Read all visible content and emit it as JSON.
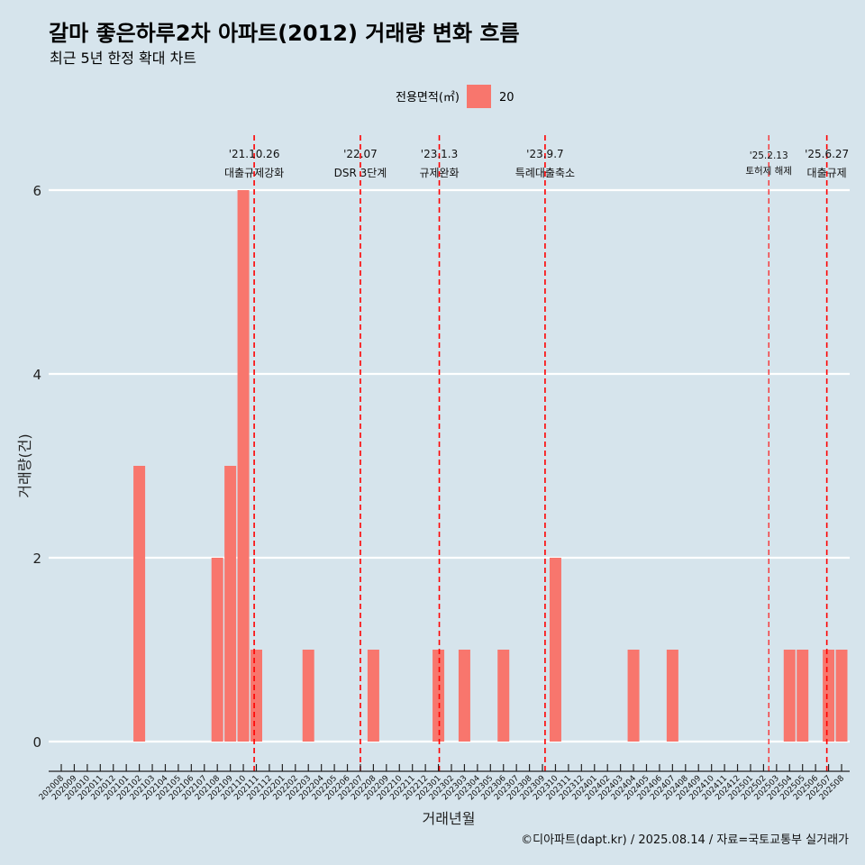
{
  "title": "갈마 좋은하루2차 아파트(2012) 거래량 변화 흐름",
  "subtitle": "최근 5년 한정 확대 차트",
  "caption": "©디아파트(dapt.kr) / 2025.08.14 / 자료=국토교통부 실거래가",
  "legend": {
    "title": "전용면적(㎡)",
    "entries": [
      "20"
    ]
  },
  "colors": {
    "bar": "#f8766d",
    "event_line": "#ff0000",
    "grid": "#ffffff",
    "background": "#d6e4ec"
  },
  "chart_data": {
    "type": "bar",
    "xlabel": "거래년월",
    "ylabel": "거래량(건)",
    "ylim": [
      0,
      6
    ],
    "yticks": [
      0,
      2,
      4,
      6
    ],
    "grid": "horizontal",
    "legend_position": "top",
    "categories": [
      "202008",
      "202009",
      "202010",
      "202011",
      "202012",
      "202101",
      "202102",
      "202103",
      "202104",
      "202105",
      "202106",
      "202107",
      "202108",
      "202109",
      "202110",
      "202111",
      "202112",
      "202201",
      "202202",
      "202203",
      "202204",
      "202205",
      "202206",
      "202207",
      "202208",
      "202209",
      "202210",
      "202211",
      "202212",
      "202301",
      "202302",
      "202303",
      "202304",
      "202305",
      "202306",
      "202307",
      "202308",
      "202309",
      "202310",
      "202311",
      "202312",
      "202401",
      "202402",
      "202403",
      "202404",
      "202405",
      "202406",
      "202407",
      "202408",
      "202409",
      "202410",
      "202411",
      "202412",
      "202501",
      "202502",
      "202503",
      "202504",
      "202505",
      "202506",
      "202507",
      "202508"
    ],
    "series": [
      {
        "name": "20",
        "values": [
          0,
          0,
          0,
          0,
          0,
          0,
          3,
          0,
          0,
          0,
          0,
          0,
          2,
          3,
          6,
          1,
          0,
          0,
          0,
          1,
          0,
          0,
          0,
          0,
          1,
          0,
          0,
          0,
          0,
          1,
          0,
          1,
          0,
          0,
          1,
          0,
          0,
          0,
          2,
          0,
          0,
          0,
          0,
          0,
          1,
          0,
          0,
          1,
          0,
          0,
          0,
          0,
          0,
          0,
          0,
          0,
          1,
          1,
          0,
          1,
          1
        ]
      }
    ],
    "events": [
      {
        "date": "2021-10-26",
        "label_top": "'21.10.26",
        "label_bottom": "대출규제강화",
        "small": false
      },
      {
        "date": "2022-07-01",
        "label_top": "'22.07",
        "label_bottom": "DSR 3단계",
        "small": false
      },
      {
        "date": "2023-01-03",
        "label_top": "'23.1.3",
        "label_bottom": "규제완화",
        "small": false
      },
      {
        "date": "2023-09-07",
        "label_top": "'23.9.7",
        "label_bottom": "특례대출축소",
        "small": false
      },
      {
        "date": "2025-02-13",
        "label_top": "'25.2.13",
        "label_bottom": "토허제 해제",
        "small": true
      },
      {
        "date": "2025-06-27",
        "label_top": "'25.6.27",
        "label_bottom": "대출규제",
        "small": false
      }
    ]
  }
}
